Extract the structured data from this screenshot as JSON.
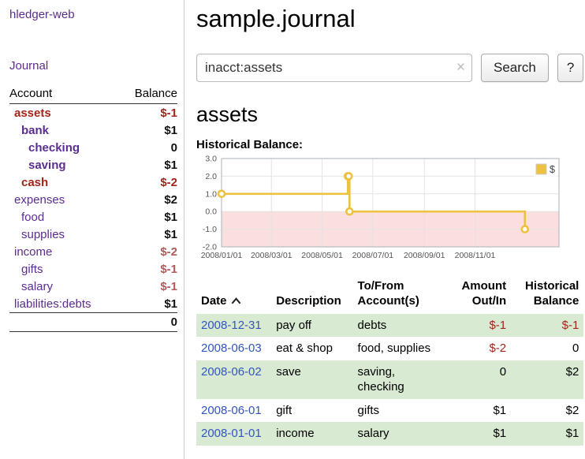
{
  "theme": {
    "link_purple": "#5b2d90",
    "date_blue": "#3355bb",
    "negative_red": "#a1251b",
    "soft_negative_red": "#b25959",
    "row_green": "#d9ead3",
    "chart_line_gold": "#edc240",
    "chart_negative_region_pink": "#fbdede"
  },
  "sidebar": {
    "app_title": "hledger-web",
    "nav": {
      "journal": "Journal"
    },
    "accounts_table": {
      "headers": {
        "account": "Account",
        "balance": "Balance"
      },
      "rows": [
        {
          "name": "assets",
          "balance": "$-1",
          "indent": 0,
          "bold": true,
          "name_color": "red",
          "balance_color": "red"
        },
        {
          "name": "bank",
          "balance": "$1",
          "indent": 1,
          "bold": true,
          "name_color": "purple",
          "balance_color": "black"
        },
        {
          "name": "checking",
          "balance": "0",
          "indent": 2,
          "bold": true,
          "name_color": "purple",
          "balance_color": "black"
        },
        {
          "name": "saving",
          "balance": "$1",
          "indent": 2,
          "bold": true,
          "name_color": "purple",
          "balance_color": "black"
        },
        {
          "name": "cash",
          "balance": "$-2",
          "indent": 1,
          "bold": true,
          "name_color": "red",
          "balance_color": "red"
        },
        {
          "name": "expenses",
          "balance": "$2",
          "indent": 0,
          "bold": false,
          "name_color": "purple",
          "balance_color": "black"
        },
        {
          "name": "food",
          "balance": "$1",
          "indent": 1,
          "bold": false,
          "name_color": "purple",
          "balance_color": "black"
        },
        {
          "name": "supplies",
          "balance": "$1",
          "indent": 1,
          "bold": false,
          "name_color": "purple",
          "balance_color": "black"
        },
        {
          "name": "income",
          "balance": "$-2",
          "indent": 0,
          "bold": false,
          "name_color": "purple",
          "balance_color": "softred"
        },
        {
          "name": "gifts",
          "balance": "$-1",
          "indent": 1,
          "bold": false,
          "name_color": "purple",
          "balance_color": "softred"
        },
        {
          "name": "salary",
          "balance": "$-1",
          "indent": 1,
          "bold": false,
          "name_color": "purple",
          "balance_color": "softred"
        },
        {
          "name": "liabilities:debts",
          "balance": "$1",
          "indent": 0,
          "bold": false,
          "name_color": "purple",
          "balance_color": "black"
        }
      ],
      "total": "0"
    }
  },
  "main": {
    "title": "sample.journal",
    "search": {
      "value": "inacct:assets",
      "placeholder": "",
      "clear_icon": "×",
      "button": "Search",
      "help_button": "?"
    },
    "account_heading": "assets",
    "chart_label": "Historical Balance:"
  },
  "chart_data": {
    "type": "line",
    "title": "Historical Balance",
    "style": "step",
    "legend": {
      "label": "$",
      "position": "top-right"
    },
    "xlim": [
      "2008-01-01",
      "2009-02-10"
    ],
    "ylim": [
      -2.0,
      3.0
    ],
    "yticks": [
      "3.0",
      "2.0",
      "1.0",
      "0.0",
      "-1.0",
      "-2.0"
    ],
    "xticks": [
      "2008/01/01",
      "2008/03/01",
      "2008/05/01",
      "2008/07/01",
      "2008/09/01",
      "2008/11/01"
    ],
    "grid": true,
    "negative_region": {
      "from": 0,
      "to": -2
    },
    "series": [
      {
        "name": "$",
        "points": [
          [
            "2008-01-01",
            1
          ],
          [
            "2008-06-01",
            2
          ],
          [
            "2008-06-02",
            2
          ],
          [
            "2008-06-03",
            0
          ],
          [
            "2008-12-31",
            -1
          ]
        ]
      }
    ]
  },
  "register_table": {
    "headers": {
      "date": "Date",
      "sort_icon": "chevron-up",
      "description": "Description",
      "tofrom": "To/From Account(s)",
      "amount": "Amount Out/In",
      "balance": "Historical Balance"
    },
    "rows": [
      {
        "date": "2008-12-31",
        "description": "pay off",
        "accounts": "debts",
        "amount": "$-1",
        "amount_neg": true,
        "balance": "$-1",
        "balance_neg": true
      },
      {
        "date": "2008-06-03",
        "description": "eat & shop",
        "accounts": "food, supplies",
        "amount": "$-2",
        "amount_neg": true,
        "balance": "0",
        "balance_neg": false
      },
      {
        "date": "2008-06-02",
        "description": "save",
        "accounts": "saving, checking",
        "amount": "0",
        "amount_neg": false,
        "balance": "$2",
        "balance_neg": false
      },
      {
        "date": "2008-06-01",
        "description": "gift",
        "accounts": "gifts",
        "amount": "$1",
        "amount_neg": false,
        "balance": "$2",
        "balance_neg": false
      },
      {
        "date": "2008-01-01",
        "description": "income",
        "accounts": "salary",
        "amount": "$1",
        "amount_neg": false,
        "balance": "$1",
        "balance_neg": false
      }
    ]
  }
}
